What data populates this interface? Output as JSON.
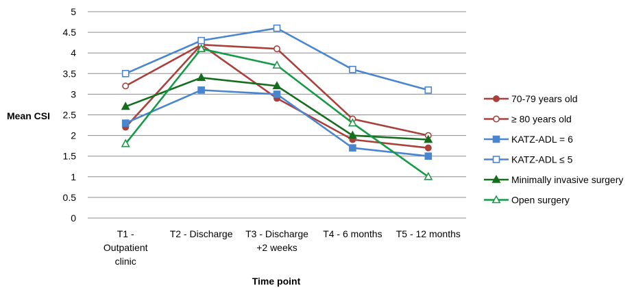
{
  "chart_data": {
    "type": "line",
    "title": "",
    "xlabel": "Time point",
    "ylabel": "Mean CSI",
    "ylim": [
      0,
      5
    ],
    "yticks": [
      "0",
      "0.5",
      "1",
      "1.5",
      "2",
      "2.5",
      "3",
      "3.5",
      "4",
      "4.5",
      "5"
    ],
    "grid": true,
    "legend_position": "right",
    "categories": [
      [
        "T1 -",
        "Outpatient",
        "clinic"
      ],
      [
        "T2 - Discharge"
      ],
      [
        "T3 - Discharge",
        "+2 weeks"
      ],
      [
        "T4 - 6 months"
      ],
      [
        "T5 - 12 months"
      ]
    ],
    "series": [
      {
        "name": "70-79 years old",
        "color": "#A9403C",
        "marker": "circle",
        "filled": true,
        "values": [
          2.2,
          4.2,
          2.9,
          1.9,
          1.7
        ]
      },
      {
        "name": "≥ 80 years old",
        "color": "#A9403C",
        "marker": "circle",
        "filled": false,
        "values": [
          3.2,
          4.2,
          4.1,
          2.4,
          2.0
        ]
      },
      {
        "name": "KATZ-ADL = 6",
        "color": "#4A86D0",
        "marker": "square",
        "filled": true,
        "values": [
          2.3,
          3.1,
          3.0,
          1.7,
          1.5
        ]
      },
      {
        "name": "KATZ-ADL ≤ 5",
        "color": "#4A86D0",
        "marker": "square",
        "filled": false,
        "values": [
          3.5,
          4.3,
          4.6,
          3.6,
          3.1
        ]
      },
      {
        "name": "Minimally invasive surgery",
        "color": "#156E1E",
        "marker": "triangle",
        "filled": true,
        "values": [
          2.7,
          3.4,
          3.2,
          2.0,
          1.9
        ]
      },
      {
        "name": "Open surgery",
        "color": "#159A46",
        "marker": "triangle",
        "filled": false,
        "values": [
          1.8,
          4.1,
          3.7,
          2.3,
          1.0
        ]
      }
    ]
  }
}
